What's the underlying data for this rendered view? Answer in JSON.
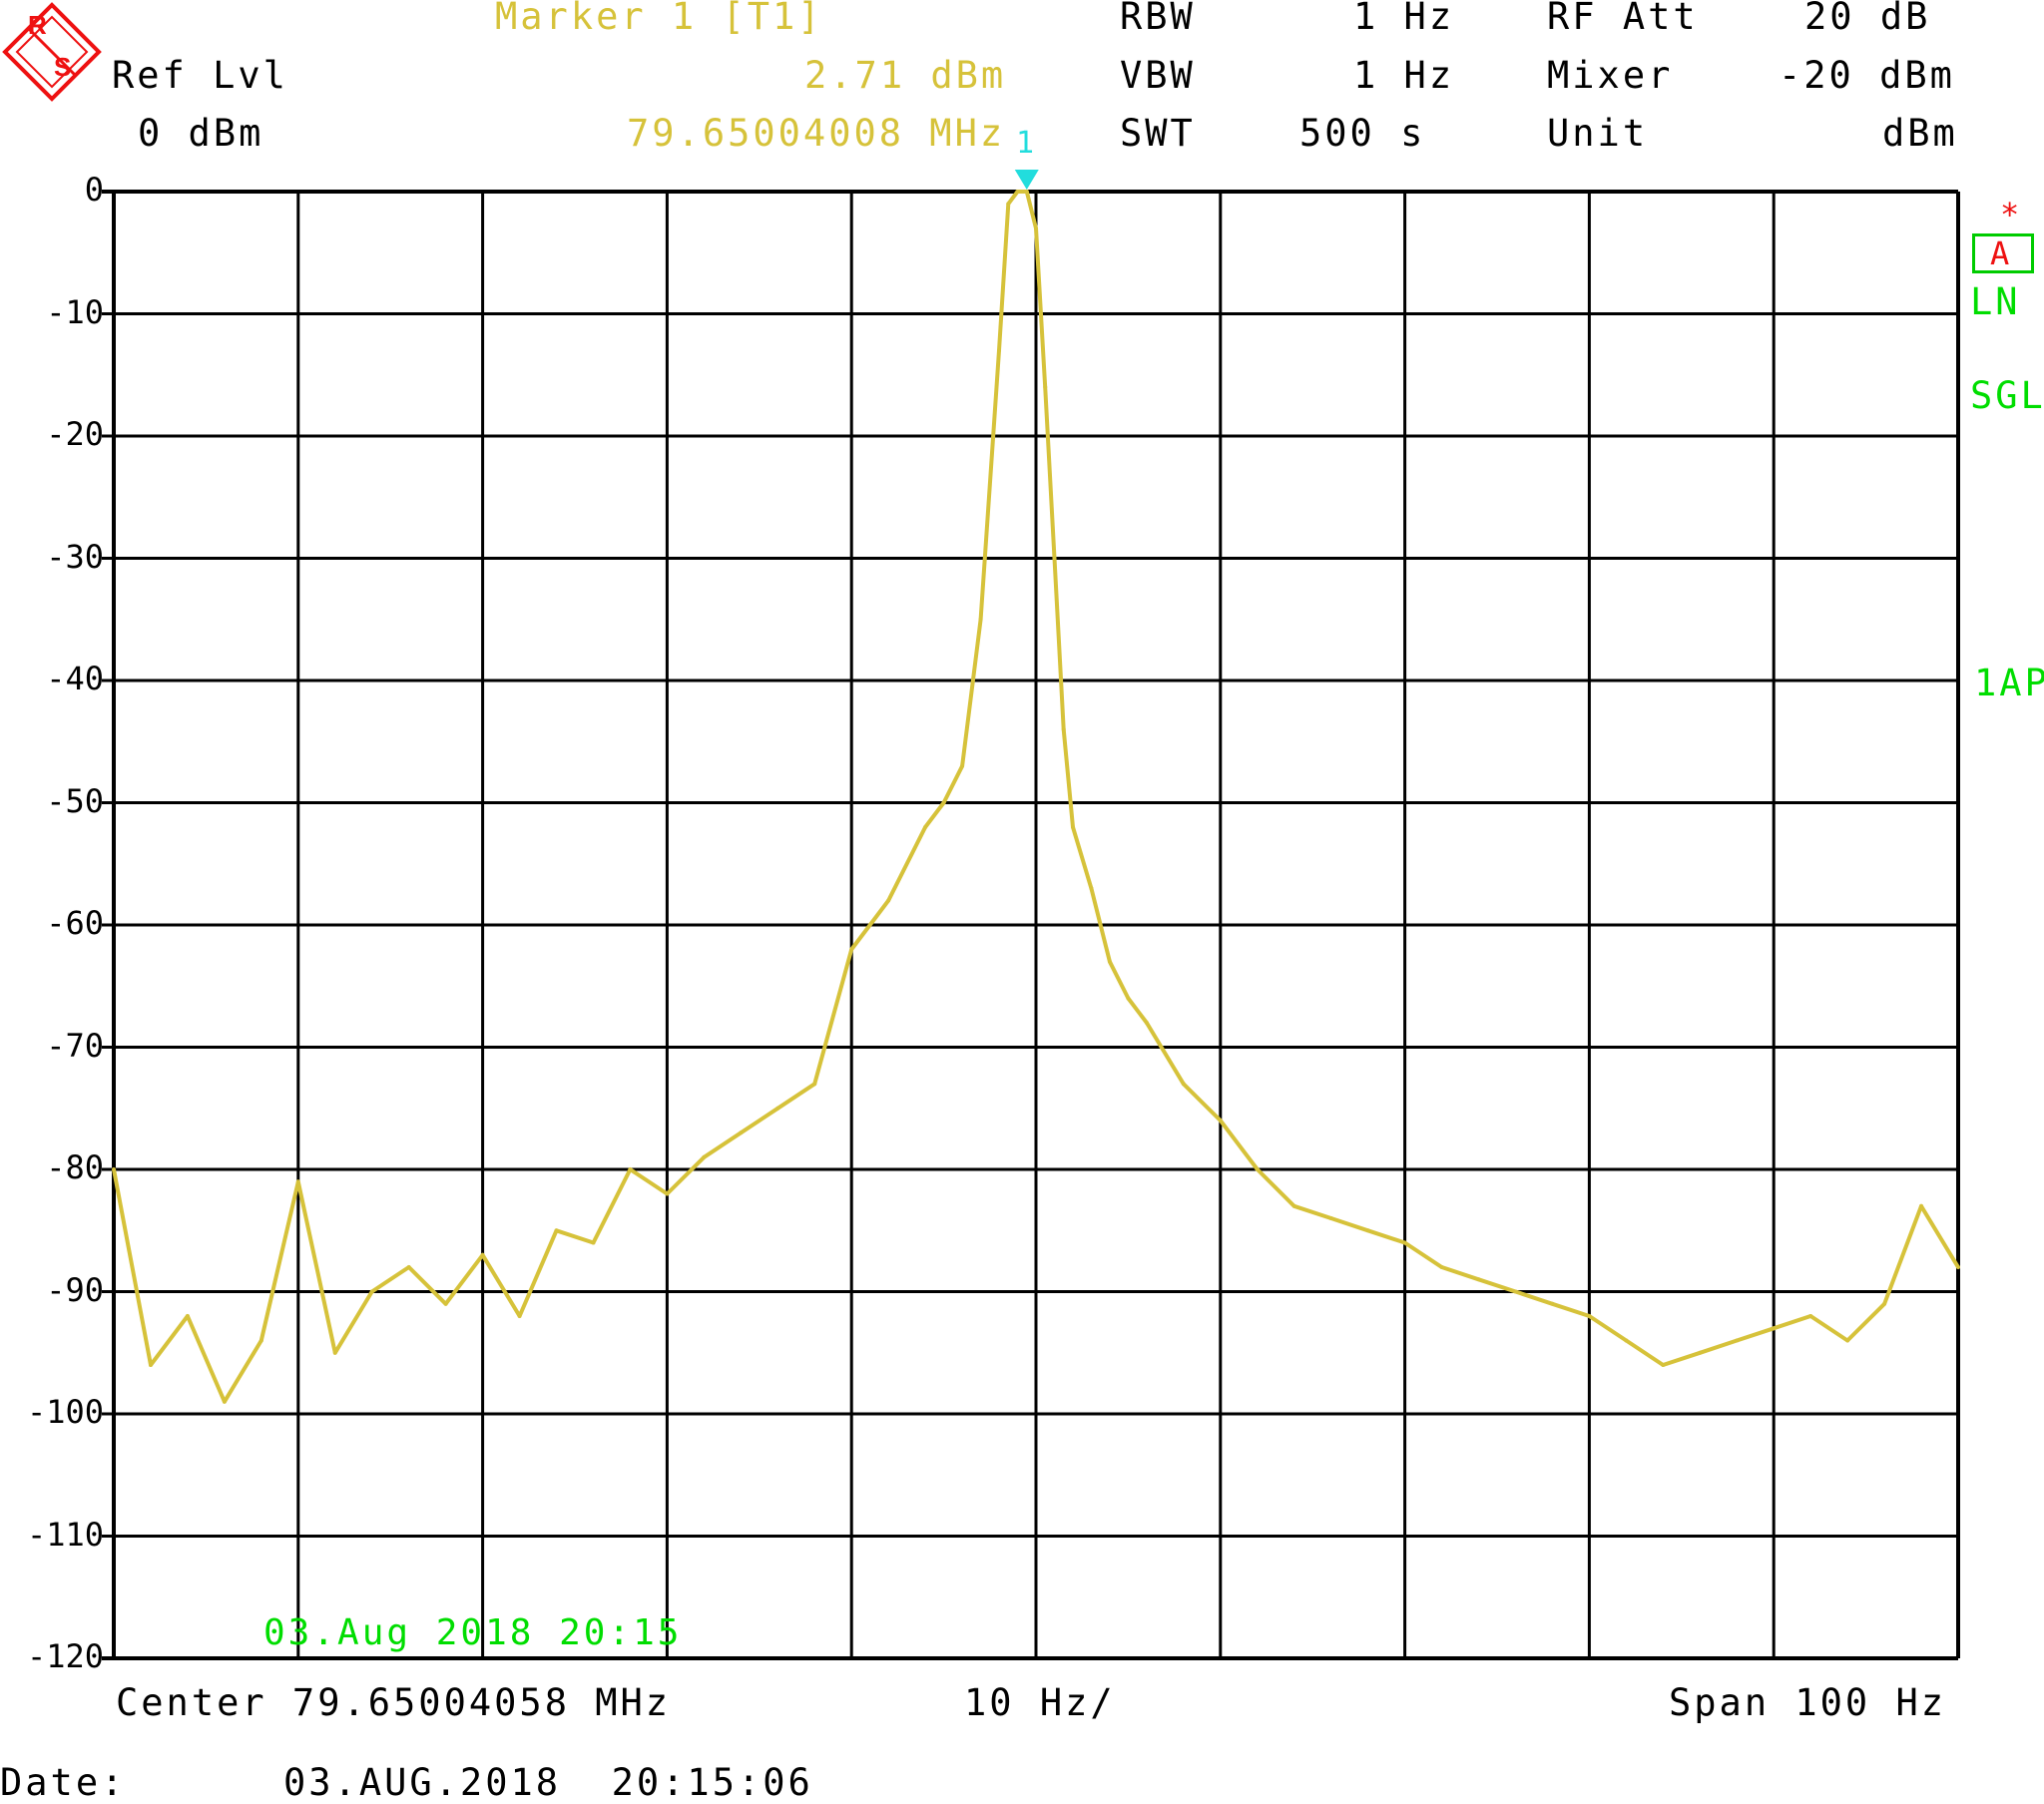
{
  "header": {
    "ref_lvl_label": "Ref Lvl",
    "ref_lvl_value": "0 dBm",
    "marker_label": "Marker 1 [T1]",
    "marker_level": "2.71 dBm",
    "marker_freq": "79.65004008 MHz",
    "rbw_label": "RBW",
    "rbw_value": "1 Hz",
    "vbw_label": "VBW",
    "vbw_value": "1 Hz",
    "swt_label": "SWT",
    "swt_value": "500 s",
    "rf_att_label": "RF Att",
    "rf_att_value": "20 dB",
    "mixer_label": "Mixer",
    "mixer_value": "-20 dBm",
    "unit_label": "Unit",
    "unit_value": "dBm"
  },
  "side": {
    "star": "*",
    "trace_badge": "A",
    "ln": "LN",
    "sgl": "SGL",
    "ap": "1AP"
  },
  "marker_tag": "1",
  "footer": {
    "center": "Center 79.65004058 MHz",
    "div": "10 Hz/",
    "span": "Span 100 Hz",
    "date_label": "Date:",
    "date_value": "03.AUG.2018  20:15:06"
  },
  "timestamp": "03.Aug 2018 20:15",
  "colors": {
    "trace": "#d6c23a",
    "marker": "#22dddd",
    "status": "#00dd00",
    "logo": "#ee1111"
  },
  "chart_data": {
    "type": "line",
    "xlim": [
      -50,
      50
    ],
    "ylim": [
      -120,
      0
    ],
    "yticks": [
      "0",
      "-10",
      "-20",
      "-30",
      "-40",
      "-50",
      "-60",
      "-70",
      "-80",
      "-90",
      "-100",
      "-110",
      "-120"
    ],
    "grid": true,
    "marker": {
      "x": -0.5,
      "y": 0
    },
    "series": [
      {
        "x": [
          -50,
          -48,
          -46,
          -44,
          -42,
          -40,
          -38,
          -36,
          -34,
          -32,
          -30,
          -28,
          -26,
          -24,
          -22,
          -20,
          -18,
          -16,
          -14,
          -12,
          -10,
          -8,
          -6,
          -5,
          -4,
          -3,
          -2,
          -1.5,
          -1,
          -0.5,
          0,
          0.5,
          1,
          1.5,
          2,
          3,
          4,
          5,
          6,
          8,
          10,
          12,
          14,
          16,
          18,
          20,
          22,
          24,
          26,
          28,
          30,
          32,
          34,
          36,
          38,
          40,
          42,
          44,
          46,
          48,
          50
        ],
        "y": [
          -80,
          -96,
          -92,
          -99,
          -94,
          -81,
          -95,
          -90,
          -88,
          -91,
          -87,
          -92,
          -85,
          -86,
          -80,
          -82,
          -79,
          -77,
          -75,
          -73,
          -62,
          -58,
          -52,
          -50,
          -47,
          -35,
          -13,
          -1,
          0,
          0,
          -3,
          -16,
          -30,
          -44,
          -52,
          -57,
          -63,
          -66,
          -68,
          -73,
          -76,
          -80,
          -83,
          -84,
          -85,
          -86,
          -88,
          -89,
          -90,
          -91,
          -92,
          -94,
          -96,
          -95,
          -94,
          -93,
          -92,
          -94,
          -91,
          -83,
          -88
        ]
      }
    ]
  }
}
